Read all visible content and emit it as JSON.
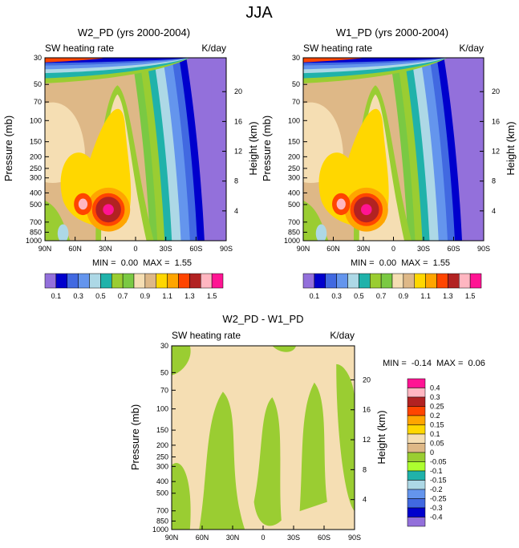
{
  "suptitle": "JJA",
  "units_label": "K/day",
  "field_label": "SW heating rate",
  "colors": [
    "#9370db",
    "#0000cd",
    "#4169e1",
    "#6495ed",
    "#add8e6",
    "#20b2aa",
    "#9acd32",
    "#7ac943",
    "#f5deb3",
    "#deb887",
    "#ffd700",
    "#ffa500",
    "#ff4500",
    "#b22222",
    "#ffb6c1",
    "#ff1493"
  ],
  "diff_colors": [
    "#9370db",
    "#0000cd",
    "#4169e1",
    "#6495ed",
    "#add8e6",
    "#20b2aa",
    "#adff2f",
    "#9acd32",
    "#deb887",
    "#f5deb3",
    "#ffd700",
    "#ffa500",
    "#ff4500",
    "#b22222",
    "#ffb6c1",
    "#ff1493"
  ],
  "chart_data": [
    {
      "type": "contour",
      "title": "W2_PD (yrs 2000-2004)",
      "left_label": "SW heating rate",
      "right_label": "K/day",
      "xlabel": "",
      "ylabel": "Pressure (mb)",
      "y2label": "Height (km)",
      "x_ticks": [
        "90N",
        "60N",
        "30N",
        "0",
        "30S",
        "60S",
        "90S"
      ],
      "y_ticks": [
        "30",
        "50",
        "70",
        "100",
        "150",
        "200",
        "250",
        "300",
        "400",
        "500",
        "700",
        "850",
        "1000"
      ],
      "y2_ticks": [
        "20",
        "16",
        "12",
        "8",
        "4"
      ],
      "stats": "MIN =  0.00  MAX =  1.55",
      "colorbar_labels": [
        "0.1",
        "0.3",
        "0.5",
        "0.7",
        "0.9",
        "1.1",
        "1.3",
        "1.5"
      ]
    },
    {
      "type": "contour",
      "title": "W1_PD (yrs 2000-2004)",
      "left_label": "SW heating rate",
      "right_label": "K/day",
      "xlabel": "",
      "ylabel": "Pressure (mb)",
      "y2label": "Height (km)",
      "x_ticks": [
        "90N",
        "60N",
        "30N",
        "0",
        "30S",
        "60S",
        "90S"
      ],
      "y_ticks": [
        "30",
        "50",
        "70",
        "100",
        "150",
        "200",
        "250",
        "300",
        "400",
        "500",
        "700",
        "850",
        "1000"
      ],
      "y2_ticks": [
        "20",
        "16",
        "12",
        "8",
        "4"
      ],
      "stats": "MIN =  0.00  MAX =  1.55",
      "colorbar_labels": [
        "0.1",
        "0.3",
        "0.5",
        "0.7",
        "0.9",
        "1.1",
        "1.3",
        "1.5"
      ]
    },
    {
      "type": "contour",
      "title": "W2_PD - W1_PD",
      "left_label": "SW heating rate",
      "right_label": "K/day",
      "xlabel": "",
      "ylabel": "Pressure (mb)",
      "y2label": "Height (km)",
      "x_ticks": [
        "90N",
        "60N",
        "30N",
        "0",
        "30S",
        "60S",
        "90S"
      ],
      "y_ticks": [
        "30",
        "50",
        "70",
        "100",
        "150",
        "200",
        "250",
        "300",
        "400",
        "500",
        "700",
        "850",
        "1000"
      ],
      "y2_ticks": [
        "20",
        "16",
        "12",
        "8",
        "4"
      ],
      "stats": "MIN =  -0.14  MAX =  0.06",
      "colorbar_labels": [
        "0.4",
        "0.3",
        "0.25",
        "0.2",
        "0.15",
        "0.1",
        "0.05",
        "0",
        "-0.05",
        "-0.1",
        "-0.15",
        "-0.2",
        "-0.25",
        "-0.3",
        "-0.4"
      ]
    }
  ]
}
